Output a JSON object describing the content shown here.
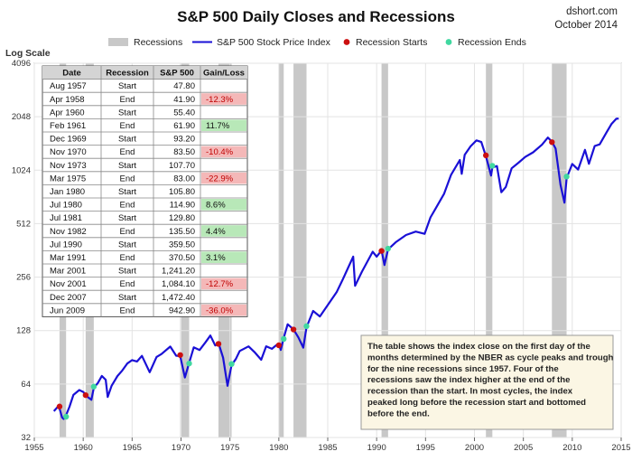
{
  "header": {
    "title": "S&P 500 Daily Closes and Recessions",
    "brand": "dshort.com",
    "date": "October 2014"
  },
  "colors": {
    "line": "#1a10d6",
    "recession_band": "#c8c8c8",
    "recession_start": "#cc1010",
    "recession_end": "#40d8a0",
    "loss_cell": "#f4b8b8",
    "gain_cell": "#b8e8b8",
    "table_header": "#d4d4d4"
  },
  "table": {
    "headers": [
      "Date",
      "Recession",
      "S&P 500",
      "Gain/Loss"
    ],
    "rows": [
      [
        "Aug 1957",
        "Start",
        "47.80",
        ""
      ],
      [
        "Apr 1958",
        "End",
        "41.90",
        "-12.3%"
      ],
      [
        "Apr 1960",
        "Start",
        "55.40",
        ""
      ],
      [
        "Feb 1961",
        "End",
        "61.90",
        "11.7%"
      ],
      [
        "Dec 1969",
        "Start",
        "93.20",
        ""
      ],
      [
        "Nov 1970",
        "End",
        "83.50",
        "-10.4%"
      ],
      [
        "Nov 1973",
        "Start",
        "107.70",
        ""
      ],
      [
        "Mar 1975",
        "End",
        "83.00",
        "-22.9%"
      ],
      [
        "Jan 1980",
        "Start",
        "105.80",
        ""
      ],
      [
        "Jul 1980",
        "End",
        "114.90",
        "8.6%"
      ],
      [
        "Jul 1981",
        "Start",
        "129.80",
        ""
      ],
      [
        "Nov 1982",
        "End",
        "135.50",
        "4.4%"
      ],
      [
        "Jul 1990",
        "Start",
        "359.50",
        ""
      ],
      [
        "Mar 1991",
        "End",
        "370.50",
        "3.1%"
      ],
      [
        "Mar 2001",
        "Start",
        "1,241.20",
        ""
      ],
      [
        "Nov 2001",
        "End",
        "1,084.10",
        "-12.7%"
      ],
      [
        "Dec 2007",
        "Start",
        "1,472.40",
        ""
      ],
      [
        "Jun 2009",
        "End",
        "942.90",
        "-36.0%"
      ]
    ]
  },
  "annotation": "The table shows the index close on the first day of the months determined by the NBER as cycle peaks and trough for the nine recessions since 1957. Four of the recessions saw the index higher at the end of the recession than the start. In most cycles, the index peaked long before the recession start and bottomed before the end.",
  "chart_data": {
    "type": "line",
    "title": "S&P 500 Daily Closes and Recessions",
    "ylabel": "Log Scale",
    "yscale": "log2",
    "ylim": [
      32,
      4096
    ],
    "xlim": [
      1955,
      2015
    ],
    "x_ticks": [
      "1955",
      "1960",
      "1965",
      "1970",
      "1975",
      "1980",
      "1985",
      "1990",
      "1995",
      "2000",
      "2005",
      "2010",
      "2015"
    ],
    "y_ticks": [
      "32",
      "64",
      "128",
      "256",
      "512",
      "1024",
      "2048",
      "4096"
    ],
    "grid": true,
    "legend_position": "top",
    "legend": [
      "Recessions",
      "S&P 500 Stock Price Index",
      "Recession Starts",
      "Recession Ends"
    ],
    "recessions": [
      {
        "start": 1957.58,
        "end": 1958.25
      },
      {
        "start": 1960.25,
        "end": 1961.08
      },
      {
        "start": 1969.92,
        "end": 1970.83
      },
      {
        "start": 1973.83,
        "end": 1975.17
      },
      {
        "start": 1980.0,
        "end": 1980.5
      },
      {
        "start": 1981.5,
        "end": 1982.83
      },
      {
        "start": 1990.5,
        "end": 1991.17
      },
      {
        "start": 2001.17,
        "end": 2001.83
      },
      {
        "start": 2007.92,
        "end": 2009.42
      }
    ],
    "recession_start_points": [
      {
        "x": 1957.58,
        "y": 47.8
      },
      {
        "x": 1960.25,
        "y": 55.4
      },
      {
        "x": 1969.92,
        "y": 93.2
      },
      {
        "x": 1973.83,
        "y": 107.7
      },
      {
        "x": 1980.0,
        "y": 105.8
      },
      {
        "x": 1981.5,
        "y": 129.8
      },
      {
        "x": 1990.5,
        "y": 359.5
      },
      {
        "x": 2001.17,
        "y": 1241.2
      },
      {
        "x": 2007.92,
        "y": 1472.4
      }
    ],
    "recession_end_points": [
      {
        "x": 1958.25,
        "y": 41.9
      },
      {
        "x": 1961.08,
        "y": 61.9
      },
      {
        "x": 1970.83,
        "y": 83.5
      },
      {
        "x": 1975.17,
        "y": 83.0
      },
      {
        "x": 1980.5,
        "y": 114.9
      },
      {
        "x": 1982.83,
        "y": 135.5
      },
      {
        "x": 1991.17,
        "y": 370.5
      },
      {
        "x": 2001.83,
        "y": 1084.1
      },
      {
        "x": 2009.42,
        "y": 942.9
      }
    ],
    "series": [
      {
        "name": "S&P 500 Stock Price Index",
        "points": [
          [
            1957.0,
            45
          ],
          [
            1957.5,
            48
          ],
          [
            1957.83,
            41
          ],
          [
            1958.0,
            40
          ],
          [
            1958.25,
            42
          ],
          [
            1958.6,
            47
          ],
          [
            1959.0,
            55
          ],
          [
            1959.6,
            59
          ],
          [
            1960.0,
            58
          ],
          [
            1960.4,
            55
          ],
          [
            1960.83,
            53
          ],
          [
            1961.08,
            62
          ],
          [
            1961.5,
            66
          ],
          [
            1961.9,
            72
          ],
          [
            1962.3,
            68
          ],
          [
            1962.5,
            54
          ],
          [
            1962.9,
            62
          ],
          [
            1963.5,
            70
          ],
          [
            1964.0,
            75
          ],
          [
            1964.5,
            82
          ],
          [
            1965.0,
            86
          ],
          [
            1965.5,
            85
          ],
          [
            1966.0,
            92
          ],
          [
            1966.8,
            75
          ],
          [
            1967.5,
            92
          ],
          [
            1968.0,
            96
          ],
          [
            1968.9,
            106
          ],
          [
            1969.5,
            94
          ],
          [
            1969.92,
            93
          ],
          [
            1970.4,
            70
          ],
          [
            1970.83,
            84
          ],
          [
            1971.3,
            102
          ],
          [
            1971.9,
            98
          ],
          [
            1972.5,
            108
          ],
          [
            1973.0,
            118
          ],
          [
            1973.5,
            104
          ],
          [
            1973.83,
            108
          ],
          [
            1974.3,
            90
          ],
          [
            1974.75,
            63
          ],
          [
            1975.17,
            83
          ],
          [
            1975.6,
            90
          ],
          [
            1976.0,
            100
          ],
          [
            1976.9,
            106
          ],
          [
            1977.5,
            98
          ],
          [
            1978.2,
            88
          ],
          [
            1978.7,
            104
          ],
          [
            1979.3,
            100
          ],
          [
            1979.8,
            105
          ],
          [
            1980.0,
            106
          ],
          [
            1980.2,
            98
          ],
          [
            1980.5,
            115
          ],
          [
            1980.9,
            138
          ],
          [
            1981.5,
            130
          ],
          [
            1982.0,
            118
          ],
          [
            1982.5,
            104
          ],
          [
            1982.83,
            136
          ],
          [
            1983.5,
            168
          ],
          [
            1984.2,
            156
          ],
          [
            1985.0,
            180
          ],
          [
            1985.9,
            211
          ],
          [
            1986.5,
            245
          ],
          [
            1987.6,
            330
          ],
          [
            1987.8,
            225
          ],
          [
            1988.5,
            270
          ],
          [
            1989.6,
            350
          ],
          [
            1990.0,
            330
          ],
          [
            1990.5,
            360
          ],
          [
            1990.8,
            300
          ],
          [
            1991.17,
            370
          ],
          [
            1992.0,
            410
          ],
          [
            1993.0,
            450
          ],
          [
            1994.0,
            470
          ],
          [
            1994.9,
            455
          ],
          [
            1995.5,
            560
          ],
          [
            1996.0,
            620
          ],
          [
            1996.9,
            750
          ],
          [
            1997.6,
            950
          ],
          [
            1998.5,
            1150
          ],
          [
            1998.7,
            960
          ],
          [
            1999.0,
            1230
          ],
          [
            1999.6,
            1380
          ],
          [
            2000.2,
            1500
          ],
          [
            2000.7,
            1480
          ],
          [
            2001.17,
            1240
          ],
          [
            2001.7,
            970
          ],
          [
            2001.83,
            1080
          ],
          [
            2002.3,
            1100
          ],
          [
            2002.75,
            780
          ],
          [
            2003.2,
            830
          ],
          [
            2003.8,
            1050
          ],
          [
            2004.5,
            1120
          ],
          [
            2005.2,
            1200
          ],
          [
            2006.0,
            1270
          ],
          [
            2006.9,
            1400
          ],
          [
            2007.5,
            1540
          ],
          [
            2007.92,
            1470
          ],
          [
            2008.3,
            1350
          ],
          [
            2008.8,
            850
          ],
          [
            2009.2,
            680
          ],
          [
            2009.42,
            940
          ],
          [
            2010.0,
            1130
          ],
          [
            2010.6,
            1050
          ],
          [
            2011.3,
            1350
          ],
          [
            2011.7,
            1120
          ],
          [
            2012.3,
            1400
          ],
          [
            2012.8,
            1420
          ],
          [
            2013.5,
            1650
          ],
          [
            2014.0,
            1830
          ],
          [
            2014.5,
            1960
          ],
          [
            2014.75,
            1970
          ]
        ]
      }
    ]
  }
}
